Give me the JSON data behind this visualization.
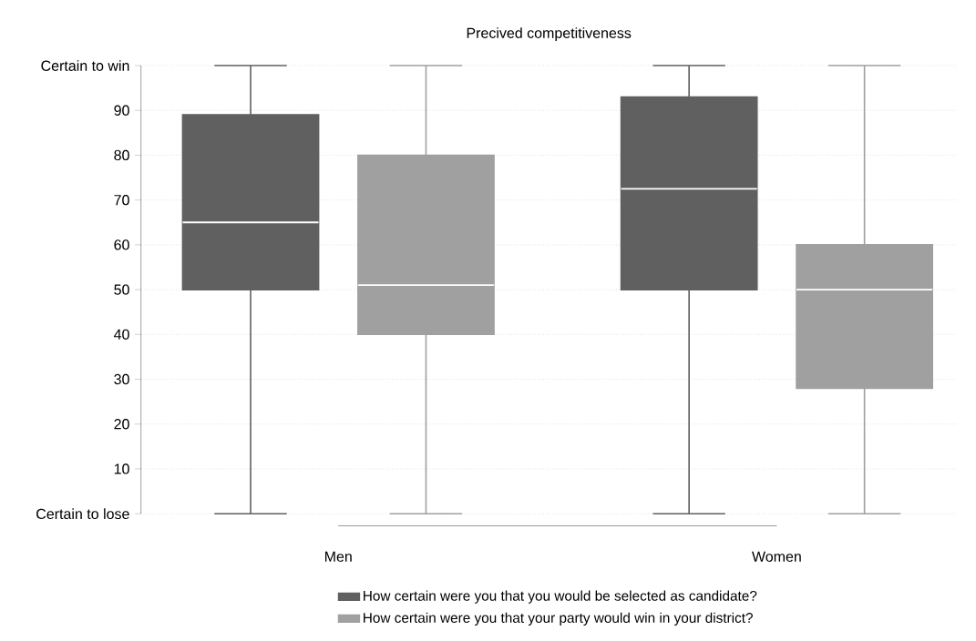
{
  "chart_data": {
    "type": "box",
    "title": "Precived competitiveness",
    "categories": [
      "Men",
      "Women"
    ],
    "ylim": [
      0,
      100
    ],
    "yticks": [
      {
        "value": 0,
        "label": "Certain to lose"
      },
      10,
      20,
      30,
      40,
      50,
      60,
      70,
      80,
      90,
      {
        "value": 100,
        "label": "Certain to win"
      }
    ],
    "grid": "y",
    "legend": "bottom",
    "series": [
      {
        "name": "How certain were you that you would be selected as candidate?",
        "color": "#606060",
        "boxes": [
          {
            "low": 0,
            "q1": 50,
            "median": 65,
            "q3": 89,
            "high": 100
          },
          {
            "low": 0,
            "q1": 50,
            "median": 72.5,
            "q3": 93,
            "high": 100
          }
        ]
      },
      {
        "name": "How certain were you that your party would win in your district?",
        "color": "#a0a0a0",
        "boxes": [
          {
            "low": 0,
            "q1": 40,
            "median": 51,
            "q3": 80,
            "high": 100
          },
          {
            "low": 0,
            "q1": 28,
            "median": 50,
            "q3": 60,
            "high": 100
          }
        ]
      }
    ]
  }
}
